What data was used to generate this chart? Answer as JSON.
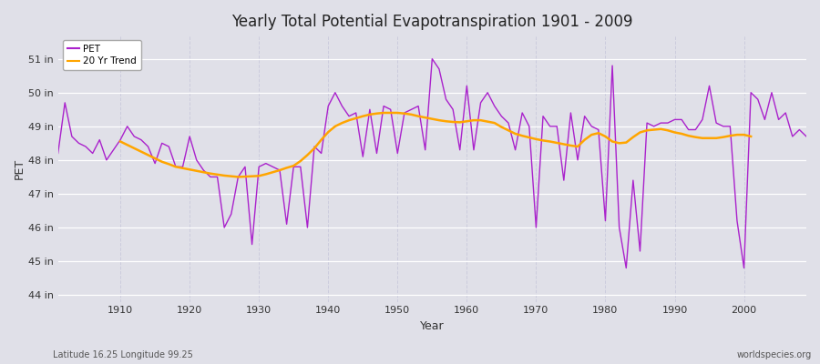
{
  "title": "Yearly Total Potential Evapotranspiration 1901 - 2009",
  "xlabel": "Year",
  "ylabel": "PET",
  "subtitle_left": "Latitude 16.25 Longitude 99.25",
  "watermark": "worldspecies.org",
  "pet_color": "#aa22cc",
  "trend_color": "#FFA500",
  "background_color": "#E0E0E8",
  "grid_color_h": "#ffffff",
  "grid_color_v": "#ccccdd",
  "ylim": [
    43.8,
    51.7
  ],
  "yticks": [
    44,
    45,
    46,
    47,
    48,
    49,
    50,
    51
  ],
  "ytick_labels": [
    "44 in",
    "45 in",
    "46 in",
    "47 in",
    "48 in",
    "49 in",
    "50 in",
    "51 in"
  ],
  "years": [
    1901,
    1902,
    1903,
    1904,
    1905,
    1906,
    1907,
    1908,
    1909,
    1910,
    1911,
    1912,
    1913,
    1914,
    1915,
    1916,
    1917,
    1918,
    1919,
    1920,
    1921,
    1922,
    1923,
    1924,
    1925,
    1926,
    1927,
    1928,
    1929,
    1930,
    1931,
    1932,
    1933,
    1934,
    1935,
    1936,
    1937,
    1938,
    1939,
    1940,
    1941,
    1942,
    1943,
    1944,
    1945,
    1946,
    1947,
    1948,
    1949,
    1950,
    1951,
    1952,
    1953,
    1954,
    1955,
    1956,
    1957,
    1958,
    1959,
    1960,
    1961,
    1962,
    1963,
    1964,
    1965,
    1966,
    1967,
    1968,
    1969,
    1970,
    1971,
    1972,
    1973,
    1974,
    1975,
    1976,
    1977,
    1978,
    1979,
    1980,
    1981,
    1982,
    1983,
    1984,
    1985,
    1986,
    1987,
    1988,
    1989,
    1990,
    1991,
    1992,
    1993,
    1994,
    1995,
    1996,
    1997,
    1998,
    1999,
    2000,
    2001,
    2002,
    2003,
    2004,
    2005,
    2006,
    2007,
    2008,
    2009
  ],
  "pet": [
    48.2,
    49.7,
    48.7,
    48.5,
    48.4,
    48.2,
    48.6,
    48.0,
    48.3,
    48.6,
    49.0,
    48.7,
    48.6,
    48.4,
    47.9,
    48.5,
    48.4,
    47.8,
    47.8,
    48.7,
    48.0,
    47.7,
    47.5,
    47.5,
    46.0,
    46.4,
    47.5,
    47.8,
    45.5,
    47.8,
    47.9,
    47.8,
    47.7,
    46.1,
    47.8,
    47.8,
    46.0,
    48.4,
    48.2,
    49.6,
    50.0,
    49.6,
    49.3,
    49.4,
    48.1,
    49.5,
    48.2,
    49.6,
    49.5,
    48.2,
    49.4,
    49.5,
    49.6,
    48.3,
    51.0,
    50.7,
    49.8,
    49.5,
    48.3,
    50.2,
    48.3,
    49.7,
    50.0,
    49.6,
    49.3,
    49.1,
    48.3,
    49.4,
    49.0,
    46.0,
    49.3,
    49.0,
    49.0,
    47.4,
    49.4,
    48.0,
    49.3,
    49.0,
    48.9,
    46.2,
    50.8,
    46.0,
    44.8,
    47.4,
    45.3,
    49.1,
    49.0,
    49.1,
    49.1,
    49.2,
    49.2,
    48.9,
    48.9,
    49.2,
    50.2,
    49.1,
    49.0,
    49.0,
    46.2,
    44.8,
    50.0,
    49.8,
    49.2,
    50.0,
    49.2,
    49.4,
    48.7,
    48.9,
    48.7
  ],
  "trend": [
    null,
    null,
    null,
    null,
    null,
    null,
    null,
    null,
    null,
    48.55,
    48.45,
    48.35,
    48.25,
    48.15,
    48.05,
    47.95,
    47.88,
    47.8,
    47.76,
    47.72,
    47.68,
    47.64,
    47.6,
    47.57,
    47.54,
    47.52,
    47.5,
    47.51,
    47.52,
    47.53,
    47.58,
    47.64,
    47.7,
    47.77,
    47.83,
    47.97,
    48.15,
    48.35,
    48.6,
    48.83,
    49.0,
    49.1,
    49.18,
    49.24,
    49.3,
    49.35,
    49.38,
    49.4,
    49.4,
    49.4,
    49.38,
    49.35,
    49.3,
    49.26,
    49.22,
    49.18,
    49.15,
    49.13,
    49.12,
    49.15,
    49.18,
    49.18,
    49.14,
    49.1,
    48.98,
    48.88,
    48.78,
    48.72,
    48.67,
    48.62,
    48.58,
    48.55,
    48.51,
    48.47,
    48.43,
    48.4,
    48.6,
    48.75,
    48.8,
    48.7,
    48.55,
    48.5,
    48.52,
    48.68,
    48.82,
    48.88,
    48.9,
    48.92,
    48.88,
    48.82,
    48.78,
    48.72,
    48.68,
    48.65,
    48.65,
    48.65,
    48.68,
    48.72,
    48.75,
    48.75,
    48.7,
    null,
    null,
    null,
    null,
    null,
    null,
    null,
    null
  ]
}
